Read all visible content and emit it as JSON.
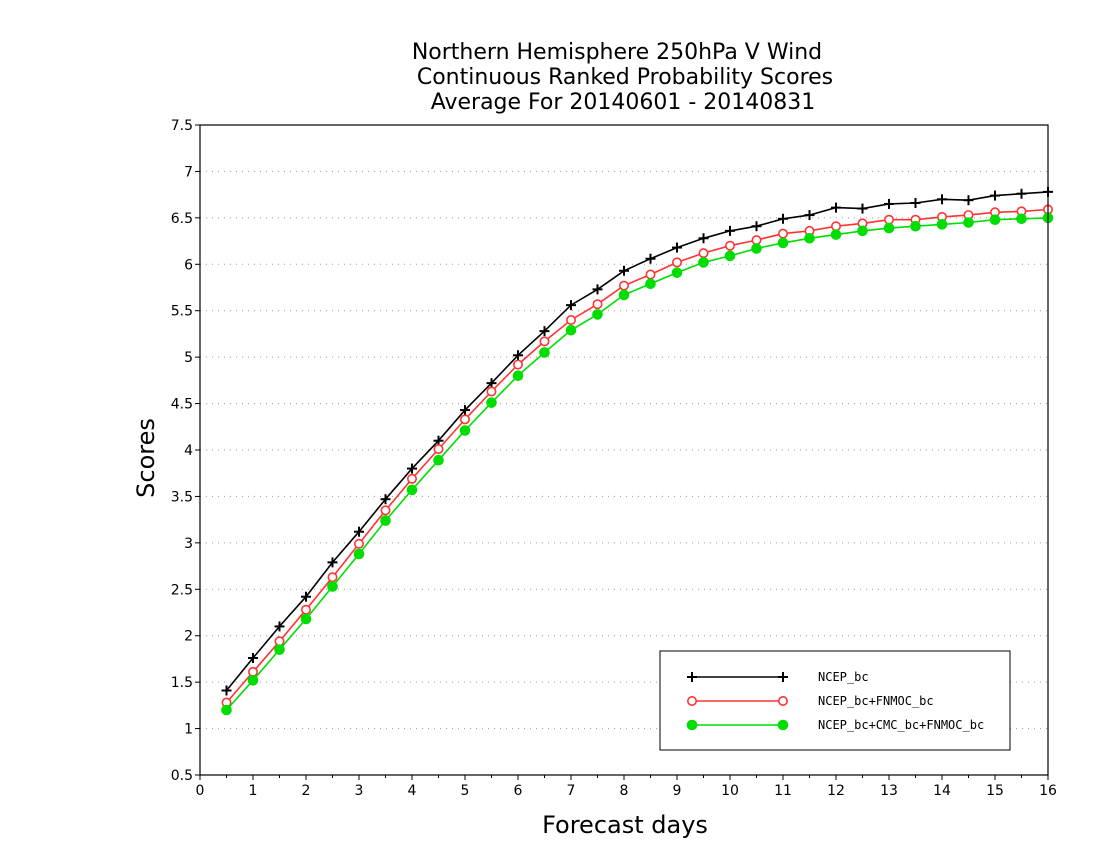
{
  "chart_data": {
    "type": "line",
    "title": [
      "Northern Hemisphere 250hPa V Wind",
      "Continuous Ranked Probability Scores",
      "Average For 20140601 - 20140831"
    ],
    "xlabel": "Forecast days",
    "ylabel": "Scores",
    "xlim": [
      0,
      16
    ],
    "ylim": [
      0.5,
      7.5
    ],
    "xticks": [
      0,
      1,
      2,
      3,
      4,
      5,
      6,
      7,
      8,
      9,
      10,
      11,
      12,
      13,
      14,
      15,
      16
    ],
    "yticks": [
      0.5,
      1,
      1.5,
      2,
      2.5,
      3,
      3.5,
      4,
      4.5,
      5,
      5.5,
      6,
      6.5,
      7,
      7.5
    ],
    "grid": "horizontal dotted",
    "legend_position": "bottom-right",
    "x": [
      0.5,
      1,
      1.5,
      2,
      2.5,
      3,
      3.5,
      4,
      4.5,
      5,
      5.5,
      6,
      6.5,
      7,
      7.5,
      8,
      8.5,
      9,
      9.5,
      10,
      10.5,
      11,
      11.5,
      12,
      12.5,
      13,
      13.5,
      14,
      14.5,
      15,
      15.5,
      16
    ],
    "series": [
      {
        "name": "NCEP_bc",
        "color": "#000000",
        "marker": "plus",
        "values": [
          1.41,
          1.76,
          2.1,
          2.42,
          2.79,
          3.12,
          3.47,
          3.8,
          4.1,
          4.43,
          4.72,
          5.02,
          5.28,
          5.56,
          5.73,
          5.93,
          6.06,
          6.18,
          6.28,
          6.36,
          6.41,
          6.49,
          6.53,
          6.61,
          6.6,
          6.65,
          6.66,
          6.7,
          6.69,
          6.74,
          6.76,
          6.78
        ]
      },
      {
        "name": "NCEP_bc+FNMOC_bc",
        "color": "#ff3333",
        "marker": "open-circle",
        "values": [
          1.28,
          1.61,
          1.94,
          2.28,
          2.63,
          2.99,
          3.35,
          3.69,
          4.01,
          4.33,
          4.63,
          4.92,
          5.17,
          5.4,
          5.57,
          5.77,
          5.89,
          6.02,
          6.12,
          6.2,
          6.26,
          6.33,
          6.36,
          6.41,
          6.44,
          6.48,
          6.48,
          6.51,
          6.53,
          6.56,
          6.57,
          6.59
        ]
      },
      {
        "name": "NCEP_bc+CMC_bc+FNMOC_bc",
        "color": "#00dd00",
        "marker": "filled-circle",
        "values": [
          1.2,
          1.52,
          1.85,
          2.18,
          2.53,
          2.88,
          3.24,
          3.57,
          3.89,
          4.21,
          4.51,
          4.8,
          5.05,
          5.29,
          5.46,
          5.67,
          5.79,
          5.91,
          6.02,
          6.09,
          6.17,
          6.23,
          6.28,
          6.32,
          6.36,
          6.39,
          6.41,
          6.43,
          6.45,
          6.48,
          6.49,
          6.5
        ]
      }
    ]
  }
}
